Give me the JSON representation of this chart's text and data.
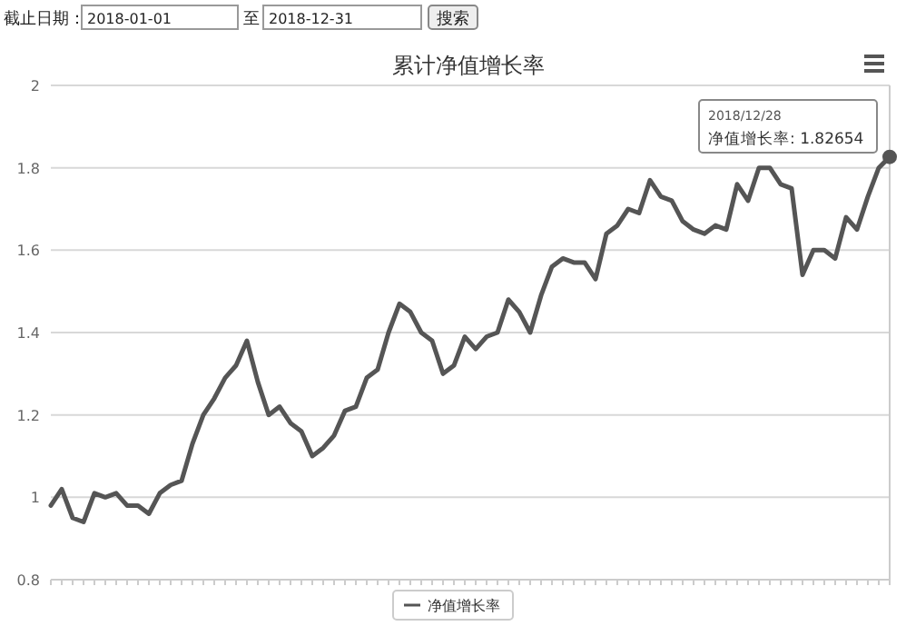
{
  "chart_data": {
    "type": "line",
    "title": "累计净值增长率",
    "categories": [
      null,
      null,
      null,
      null,
      null,
      null,
      null,
      null,
      null,
      null,
      null,
      null,
      null,
      null,
      null,
      null,
      null,
      null,
      null,
      null,
      null,
      null,
      null,
      null,
      null,
      null,
      null,
      null,
      null,
      null,
      null,
      null,
      null,
      null,
      null,
      null,
      null,
      null,
      null,
      null,
      null,
      null,
      null,
      null,
      null,
      null,
      null,
      null,
      null,
      null,
      null,
      null,
      null,
      null,
      null,
      null,
      null,
      null,
      null,
      null,
      null,
      null,
      null,
      null,
      null,
      null,
      null,
      null,
      null,
      null,
      null,
      null,
      null,
      null,
      null,
      null,
      null,
      null
    ],
    "series": [
      {
        "name": "净值增长率",
        "color": "#555555",
        "values": [
          0.98,
          1.02,
          0.95,
          0.94,
          1.01,
          1.0,
          1.01,
          0.98,
          0.98,
          0.96,
          1.01,
          1.03,
          1.04,
          1.13,
          1.2,
          1.24,
          1.29,
          1.32,
          1.38,
          1.28,
          1.2,
          1.22,
          1.18,
          1.16,
          1.1,
          1.12,
          1.15,
          1.21,
          1.22,
          1.29,
          1.31,
          1.4,
          1.47,
          1.45,
          1.4,
          1.38,
          1.3,
          1.32,
          1.39,
          1.36,
          1.39,
          1.4,
          1.48,
          1.45,
          1.4,
          1.49,
          1.56,
          1.58,
          1.57,
          1.57,
          1.53,
          1.64,
          1.66,
          1.7,
          1.69,
          1.77,
          1.73,
          1.72,
          1.67,
          1.65,
          1.64,
          1.66,
          1.65,
          1.76,
          1.72,
          1.8,
          1.8,
          1.76,
          1.75,
          1.54,
          1.6,
          1.6,
          1.58,
          1.68,
          1.65,
          1.73,
          1.8,
          1.82654
        ]
      }
    ],
    "ylim": [
      0.8,
      2
    ],
    "yticks": [
      0.8,
      1,
      1.2,
      1.4,
      1.6,
      1.8,
      2
    ],
    "grid": "y",
    "legend": "bottom",
    "marker": "none",
    "line_style": "solid",
    "annotations": [
      "截止日期：",
      "2018-01-01",
      "至",
      "2018-12-31",
      "搜索",
      "2018/12/28",
      "净值增长率: 1.82654"
    ]
  }
}
